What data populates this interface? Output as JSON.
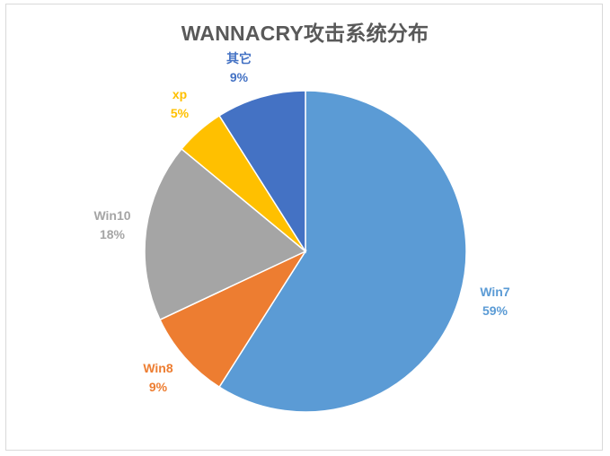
{
  "chart_data": {
    "type": "pie",
    "title": "WANNACRY攻击系统分布",
    "slices": [
      {
        "label": "Win7",
        "value": 59,
        "value_label": "59%",
        "color": "#5b9bd5"
      },
      {
        "label": "Win8",
        "value": 9,
        "value_label": "9%",
        "color": "#ed7d31"
      },
      {
        "label": "Win10",
        "value": 18,
        "value_label": "18%",
        "color": "#a5a5a5"
      },
      {
        "label": "xp",
        "value": 5,
        "value_label": "5%",
        "color": "#ffc000"
      },
      {
        "label": "其它",
        "value": 9,
        "value_label": "9%",
        "color": "#4472c4"
      }
    ],
    "legend": "none",
    "data_labels": "outside"
  }
}
